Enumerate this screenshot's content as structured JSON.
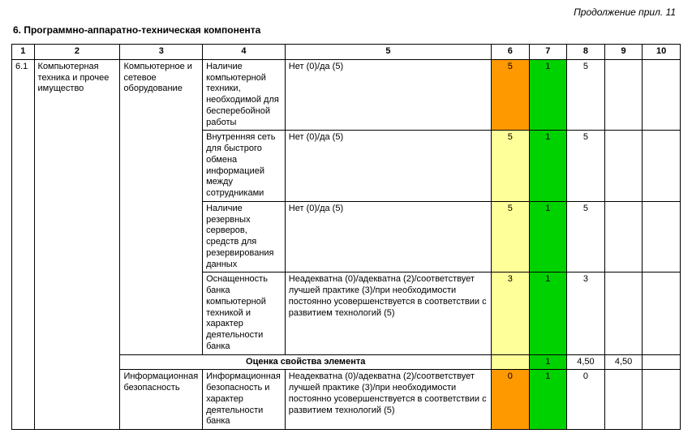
{
  "continuation_label": "Продолжение прил. 11",
  "section_title": "6. Программно-аппаратно-техническая компонента",
  "colors": {
    "orange": "#ff9900",
    "green": "#00d200",
    "yellow": "#ffff99",
    "white": "#ffffff",
    "border": "#000000"
  },
  "header": {
    "h1": "1",
    "h2": "2",
    "h3": "3",
    "h4": "4",
    "h5": "5",
    "h6": "6",
    "h7": "7",
    "h8": "8",
    "h9": "9",
    "h10": "10"
  },
  "group": {
    "num": "6.1",
    "col2": "Компьютерная техника и прочее имущество",
    "col3": "Компьютерное и сетевое оборудование"
  },
  "rows": [
    {
      "col4": "Наличие компьютерной техники, необходимой для бесперебойной работы",
      "col5": "Нет (0)/да (5)",
      "c6": "5",
      "c6_color": "orange",
      "c7": "1",
      "c7_color": "green",
      "c8": "5",
      "c9": "",
      "c10": ""
    },
    {
      "col4": "Внутренняя сеть для быстрого обмена информацией между сотрудниками",
      "col5": "Нет (0)/да (5)",
      "c6": "5",
      "c6_color": "yellow",
      "c7": "1",
      "c7_color": "green",
      "c8": "5",
      "c9": "",
      "c10": ""
    },
    {
      "col4": "Наличие резервных серверов, средств для резервирования данных",
      "col5": "Нет (0)/да (5)",
      "c6": "5",
      "c6_color": "yellow",
      "c7": "1",
      "c7_color": "green",
      "c8": "5",
      "c9": "",
      "c10": ""
    },
    {
      "col4": "Оснащенность банка компьютерной техникой и характер деятельности банка",
      "col5": "Неадекватна (0)/адекватна (2)/соответствует лучшей практике (3)/при необходимости постоянно усовершенствуется в соответствии с развитием технологий (5)",
      "c6": "3",
      "c6_color": "yellow",
      "c7": "1",
      "c7_color": "green",
      "c8": "3",
      "c9": "",
      "c10": ""
    }
  ],
  "summary": {
    "label": "Оценка свойства элемента",
    "c6": "",
    "c6_color": "yellow",
    "c7": "1",
    "c7_color": "green",
    "c8": "4,50",
    "c9": "4,50",
    "c10": ""
  },
  "row2_group": {
    "col3": "Информационная безопасность"
  },
  "row2": {
    "col4": "Информационная безопасность и характер деятельности банка",
    "col5": "Неадекватна (0)/адекватна (2)/соответствует лучшей практике (3)/при необходимости постоянно усовершенствуется в соответствии с развитием технологий (5)",
    "c6": "0",
    "c6_color": "orange",
    "c7": "1",
    "c7_color": "green",
    "c8": "0",
    "c9": "",
    "c10": ""
  }
}
